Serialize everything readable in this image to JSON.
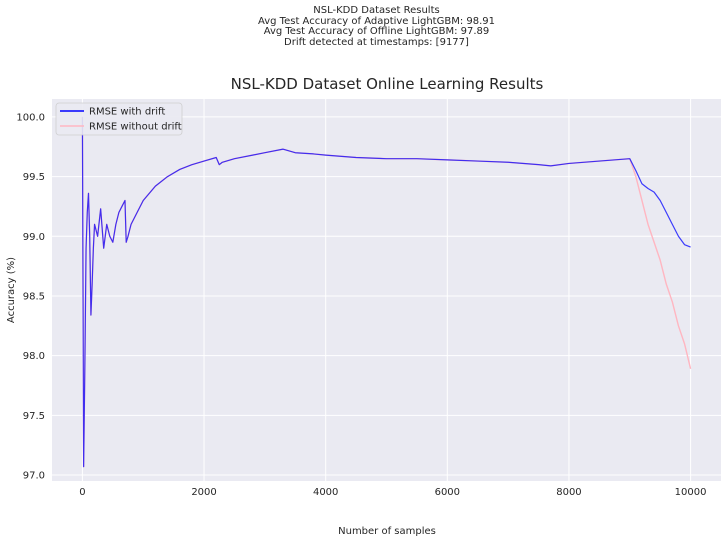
{
  "suptitle": {
    "line1": "NSL-KDD Dataset Results",
    "line2": "Avg Test Accuracy of Adaptive LightGBM: 98.91",
    "line3": "Avg Test Accuracy of Offline LightGBM: 97.89",
    "line4": "Drift detected at timestamps: [9177]"
  },
  "chart_data": {
    "type": "line",
    "title": "NSL-KDD Dataset Online Learning Results",
    "xlabel": "Number of samples",
    "ylabel": "Accuracy (%)",
    "xlim": [
      -500,
      10500
    ],
    "ylim": [
      96.95,
      100.15
    ],
    "xticks": [
      0,
      2000,
      4000,
      6000,
      8000,
      10000
    ],
    "yticks": [
      97.0,
      97.5,
      98.0,
      98.5,
      99.0,
      99.5,
      100.0
    ],
    "grid": true,
    "legend_position": "upper left",
    "series": [
      {
        "name": "RMSE with drift",
        "color": "#0000ff",
        "x": [
          0,
          20,
          40,
          60,
          80,
          100,
          120,
          140,
          160,
          180,
          200,
          250,
          300,
          350,
          400,
          450,
          500,
          550,
          600,
          650,
          700,
          720,
          750,
          800,
          900,
          1000,
          1200,
          1400,
          1600,
          1800,
          2000,
          2200,
          2250,
          2300,
          2500,
          2800,
          3000,
          3300,
          3500,
          3800,
          4000,
          4500,
          5000,
          5500,
          6000,
          6500,
          7000,
          7500,
          7700,
          8000,
          8500,
          9000,
          9100,
          9200,
          9300,
          9400,
          9500,
          9600,
          9700,
          9800,
          9900,
          10000
        ],
        "y": [
          100.0,
          97.07,
          97.9,
          98.9,
          99.2,
          99.36,
          99.0,
          98.34,
          98.6,
          98.9,
          99.1,
          99.0,
          99.23,
          98.9,
          99.1,
          99.0,
          98.95,
          99.1,
          99.2,
          99.25,
          99.3,
          98.95,
          99.0,
          99.1,
          99.2,
          99.3,
          99.42,
          99.5,
          99.56,
          99.6,
          99.63,
          99.66,
          99.6,
          99.62,
          99.65,
          99.68,
          99.7,
          99.73,
          99.7,
          99.69,
          99.68,
          99.66,
          99.65,
          99.65,
          99.64,
          99.63,
          99.62,
          99.6,
          99.59,
          99.61,
          99.63,
          99.65,
          99.55,
          99.44,
          99.4,
          99.37,
          99.3,
          99.2,
          99.1,
          99.0,
          98.93,
          98.91
        ]
      },
      {
        "name": "RMSE without drift",
        "color": "#ffb6c1",
        "x": [
          0,
          20,
          40,
          60,
          80,
          100,
          120,
          140,
          160,
          180,
          200,
          250,
          300,
          350,
          400,
          450,
          500,
          550,
          600,
          650,
          700,
          720,
          750,
          800,
          900,
          1000,
          1200,
          1400,
          1600,
          1800,
          2000,
          2200,
          2250,
          2300,
          2500,
          2800,
          3000,
          3300,
          3500,
          3800,
          4000,
          4500,
          5000,
          5500,
          6000,
          6500,
          7000,
          7500,
          7700,
          8000,
          8500,
          9000,
          9100,
          9200,
          9300,
          9400,
          9500,
          9600,
          9700,
          9800,
          9900,
          10000
        ],
        "y": [
          100.0,
          97.07,
          97.9,
          98.9,
          99.2,
          99.36,
          99.0,
          98.34,
          98.6,
          98.9,
          99.1,
          99.0,
          99.23,
          98.9,
          99.1,
          99.0,
          98.95,
          99.1,
          99.2,
          99.25,
          99.3,
          98.95,
          99.0,
          99.1,
          99.2,
          99.3,
          99.42,
          99.5,
          99.56,
          99.6,
          99.63,
          99.66,
          99.6,
          99.62,
          99.65,
          99.68,
          99.7,
          99.73,
          99.7,
          99.69,
          99.68,
          99.66,
          99.65,
          99.65,
          99.64,
          99.63,
          99.62,
          99.6,
          99.59,
          99.61,
          99.63,
          99.65,
          99.5,
          99.3,
          99.1,
          98.95,
          98.8,
          98.6,
          98.45,
          98.25,
          98.1,
          97.89
        ]
      }
    ]
  }
}
